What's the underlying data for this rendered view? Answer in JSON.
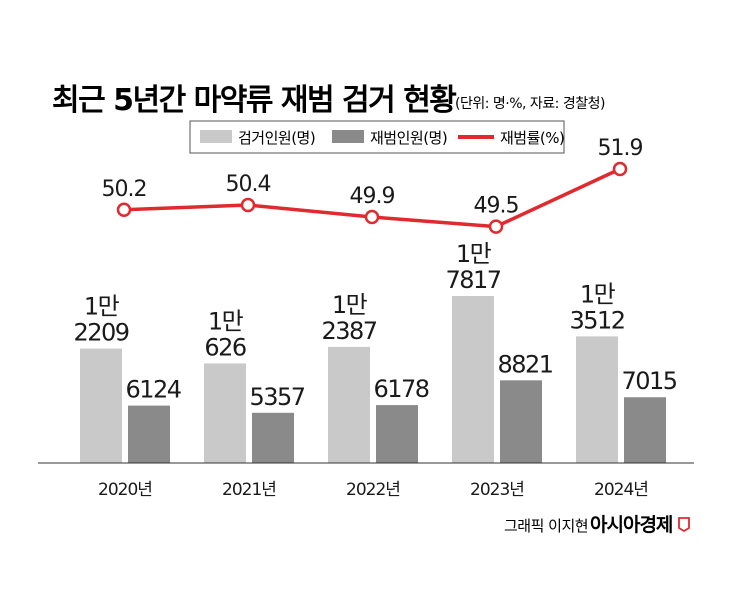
{
  "title": "최근 5년간 마약류 재범 검거 현황",
  "subtitle": "(단위: 명·%, 자료: 경찰청)",
  "credit": "그래픽 이지현",
  "brand": "아시아경제",
  "colors": {
    "arrest_bar": "#c9c9c9",
    "repeat_bar": "#8a8a8a",
    "rate_line": "#e02a2f",
    "text": "#1a1a1a"
  },
  "chart_data": {
    "type": "bar",
    "categories": [
      "2020년",
      "2021년",
      "2022년",
      "2023년",
      "2024년"
    ],
    "series": [
      {
        "name": "검거인원(명)",
        "values": [
          12209,
          10626,
          12387,
          17817,
          13512
        ],
        "labels": [
          [
            "1만",
            "2209"
          ],
          [
            "1만",
            "626"
          ],
          [
            "1만",
            "2387"
          ],
          [
            "1만",
            "7817"
          ],
          [
            "1만",
            "3512"
          ]
        ]
      },
      {
        "name": "재범인원(명)",
        "values": [
          6124,
          5357,
          6178,
          8821,
          7015
        ],
        "labels": [
          [
            "6124"
          ],
          [
            "5357"
          ],
          [
            "6178"
          ],
          [
            "8821"
          ],
          [
            "7015"
          ]
        ]
      },
      {
        "name": "재범률(%)",
        "type": "line",
        "values": [
          50.2,
          50.4,
          49.9,
          49.5,
          51.9
        ],
        "labels": [
          "50.2",
          "50.4",
          "49.9",
          "49.5",
          "51.9"
        ]
      }
    ],
    "legend_position": "top-center",
    "grid": false
  }
}
